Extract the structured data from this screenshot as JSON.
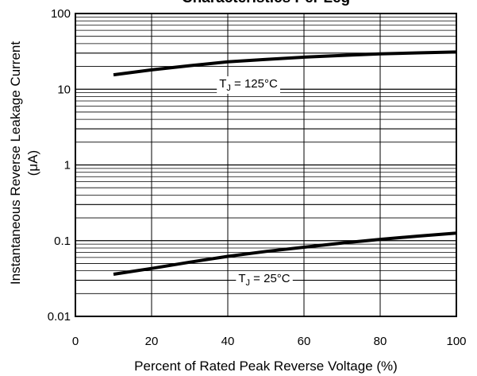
{
  "chart_data": {
    "type": "line",
    "title": "Characteristics Per Leg",
    "xlabel": "Percent of Rated Peak Reverse Voltage (%)",
    "ylabel": "Instantaneous Reverse Leakage Current",
    "ylabel_unit": "(μA)",
    "x_scale": "linear",
    "y_scale": "log",
    "xlim": [
      0,
      100
    ],
    "ylim": [
      0.01,
      100
    ],
    "x_ticks": [
      0,
      20,
      40,
      60,
      80,
      100
    ],
    "x_tick_labels": [
      "0",
      "20",
      "40",
      "60",
      "80",
      "100"
    ],
    "y_ticks": [
      0.01,
      0.1,
      1,
      10,
      100
    ],
    "y_tick_labels": [
      "0.01",
      "0.1",
      "1",
      "10",
      "100"
    ],
    "grid": true,
    "series": [
      {
        "name": "TJ = 125°C",
        "label_main": "T",
        "label_sub": "J",
        "label_rest": " = 125°C",
        "x": [
          10,
          20,
          30,
          40,
          50,
          60,
          70,
          80,
          90,
          100
        ],
        "values": [
          15.5,
          18.0,
          20.5,
          23.0,
          24.8,
          26.5,
          28.0,
          29.3,
          30.2,
          31.0
        ]
      },
      {
        "name": "TJ = 25°C",
        "label_main": "T",
        "label_sub": "J",
        "label_rest": " = 25°C",
        "x": [
          10,
          20,
          30,
          40,
          50,
          60,
          70,
          80,
          90,
          100
        ],
        "values": [
          0.036,
          0.043,
          0.052,
          0.062,
          0.072,
          0.082,
          0.093,
          0.104,
          0.115,
          0.126
        ]
      }
    ]
  }
}
